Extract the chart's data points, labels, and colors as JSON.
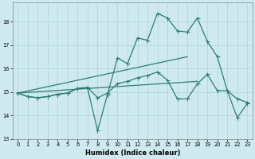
{
  "xlabel": "Humidex (Indice chaleur)",
  "background_color": "#ceeaf0",
  "grid_color": "#aad4dc",
  "line_color": "#2e7d6e",
  "xlim": [
    -0.5,
    23.5
  ],
  "ylim": [
    13.0,
    18.8
  ],
  "yticks": [
    13,
    14,
    15,
    16,
    17,
    18
  ],
  "xticks": [
    0,
    1,
    2,
    3,
    4,
    5,
    6,
    7,
    8,
    9,
    10,
    11,
    12,
    13,
    14,
    15,
    16,
    17,
    18,
    19,
    20,
    21,
    22,
    23
  ],
  "line1_x": [
    0,
    1,
    2,
    3,
    4,
    5,
    6,
    7,
    8,
    9,
    10,
    11,
    12,
    13,
    14,
    15,
    16,
    17,
    18,
    19,
    20,
    21,
    22,
    23
  ],
  "line1_y": [
    14.95,
    14.8,
    14.75,
    14.8,
    14.9,
    14.95,
    15.15,
    15.15,
    13.35,
    14.9,
    16.45,
    16.2,
    17.3,
    17.2,
    18.35,
    18.15,
    17.6,
    17.55,
    18.15,
    17.15,
    16.5,
    15.05,
    13.9,
    14.5
  ],
  "line2_x": [
    0,
    1,
    2,
    3,
    4,
    5,
    6,
    7,
    8,
    9,
    10,
    11,
    12,
    13,
    14,
    15,
    16,
    17,
    18,
    19,
    20,
    21,
    22,
    23
  ],
  "line2_y": [
    14.95,
    14.8,
    14.75,
    14.8,
    14.9,
    14.95,
    15.15,
    15.2,
    14.75,
    14.95,
    15.35,
    15.45,
    15.6,
    15.7,
    15.85,
    15.5,
    14.7,
    14.7,
    15.35,
    15.75,
    15.05,
    15.05,
    14.7,
    14.55
  ],
  "trend1_x": [
    0,
    17
  ],
  "trend1_y": [
    14.95,
    16.5
  ],
  "trend2_x": [
    0,
    18
  ],
  "trend2_y": [
    14.95,
    15.45
  ]
}
